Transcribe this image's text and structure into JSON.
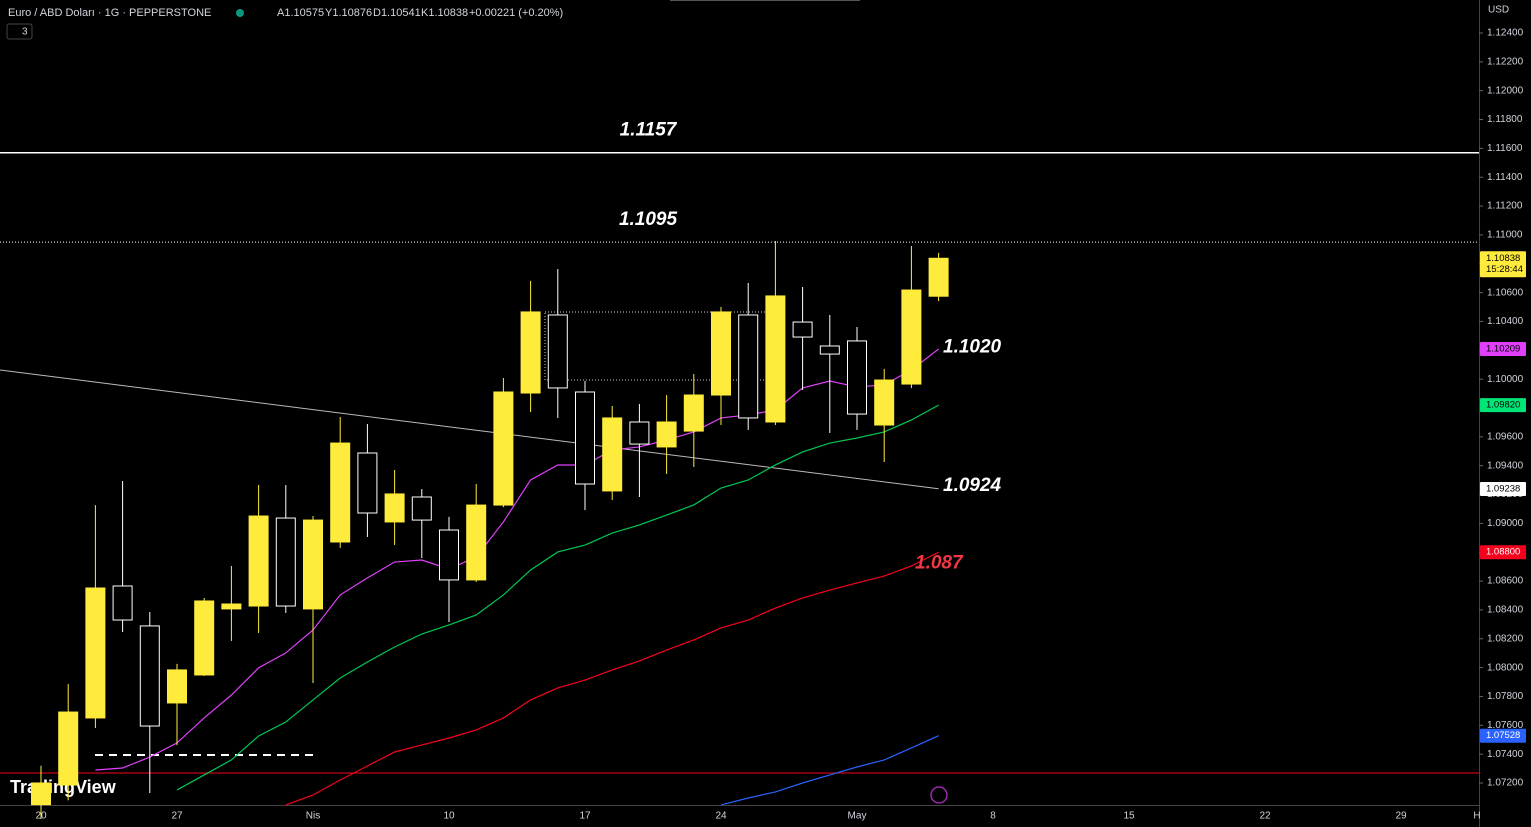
{
  "header": {
    "symbol": "Euro / ABD Doları · 1G · PEPPERSTONE",
    "open": "A1.10575",
    "high": "Y1.10876",
    "low": "D1.10541",
    "close": "K1.10838",
    "change": "+0.00221 (+0.20%)",
    "indicators": "3",
    "currency": "USD",
    "logo": "TradingView"
  },
  "chart_data": {
    "type": "candlestick",
    "up_color": "#ffeb3b",
    "down_color": "#000000",
    "down_border": "#ffffff",
    "grid": false,
    "open": [
      1.0705,
      1.07186,
      1.07651,
      1.08566,
      1.08289,
      1.07755,
      1.07949,
      1.08407,
      1.08427,
      1.09037,
      1.08407,
      1.08871,
      1.09488,
      1.0901,
      1.09183,
      1.08954,
      1.08608,
      1.09127,
      1.09904,
      1.10445,
      1.09911,
      1.09225,
      1.09703,
      1.0953,
      1.0964,
      1.0989,
      1.10445,
      1.09703,
      1.10396,
      1.1023,
      1.10265,
      1.09682,
      1.09966,
      1.10575
    ],
    "high": [
      1.0732,
      1.07886,
      1.09127,
      1.09294,
      1.08386,
      1.08026,
      1.08483,
      1.08705,
      1.09266,
      1.09266,
      1.09051,
      1.09738,
      1.09689,
      1.0937,
      1.09238,
      1.09045,
      1.09273,
      1.10008,
      1.10681,
      1.10764,
      1.09987,
      1.09814,
      1.09828,
      1.0989,
      1.10036,
      1.10501,
      1.10667,
      1.10958,
      1.10639,
      1.10445,
      1.10362,
      1.10071,
      1.10923,
      1.10876
    ],
    "low": [
      1.0695,
      1.0708,
      1.07581,
      1.08247,
      1.07131,
      1.07463,
      1.07942,
      1.08185,
      1.0824,
      1.08379,
      1.07893,
      1.0883,
      1.08906,
      1.0885,
      1.0876,
      1.08316,
      1.08594,
      1.09113,
      1.09772,
      1.09731,
      1.09092,
      1.09162,
      1.09183,
      1.09343,
      1.09391,
      1.09682,
      1.09648,
      1.09682,
      1.09925,
      1.09627,
      1.09648,
      1.09426,
      1.09938,
      1.10541
    ],
    "close": [
      1.072,
      1.07692,
      1.08552,
      1.0833,
      1.07595,
      1.07984,
      1.08462,
      1.08441,
      1.09051,
      1.08427,
      1.09023,
      1.09557,
      1.09072,
      1.09204,
      1.09023,
      1.08608,
      1.09127,
      1.09911,
      1.10466,
      1.09939,
      1.09273,
      1.09731,
      1.0955,
      1.09703,
      1.0989,
      1.10466,
      1.09731,
      1.10577,
      1.10292,
      1.10174,
      1.09758,
      1.09994,
      1.10618,
      1.10838
    ],
    "overlays": [
      {
        "color": "#e040fb",
        "values": [
          null,
          null,
          1.0729,
          1.07304,
          1.0738,
          1.07478,
          1.07651,
          1.0781,
          1.07998,
          1.08102,
          1.08261,
          1.08504,
          1.08622,
          1.08732,
          1.08746,
          1.08684,
          1.08767,
          1.0901,
          1.09301,
          1.09405,
          1.09405,
          1.09509,
          1.0953,
          1.09578,
          1.09634,
          1.09731,
          1.09752,
          1.09786,
          1.09939,
          1.09987,
          1.09946,
          1.0996,
          1.10064,
          1.10209
        ]
      },
      {
        "color": "#00c853",
        "values": [
          null,
          null,
          null,
          null,
          null,
          1.07152,
          1.07256,
          1.0736,
          1.07526,
          1.07623,
          1.07776,
          1.07928,
          1.08039,
          1.08143,
          1.08233,
          1.08296,
          1.08365,
          1.08504,
          1.08677,
          1.08802,
          1.0885,
          1.08933,
          1.08989,
          1.09058,
          1.09128,
          1.09245,
          1.09301,
          1.09405,
          1.09495,
          1.09557,
          1.09592,
          1.09634,
          1.09717,
          1.0982
        ]
      },
      {
        "color": "#f7001d",
        "values": [
          null,
          null,
          null,
          null,
          null,
          null,
          null,
          null,
          null,
          1.07048,
          1.07117,
          1.07221,
          1.07318,
          1.07415,
          1.07464,
          1.07512,
          1.07568,
          1.07651,
          1.07776,
          1.07859,
          1.07914,
          1.07984,
          1.08046,
          1.08122,
          1.08192,
          1.08275,
          1.0833,
          1.08413,
          1.08483,
          1.08538,
          1.08587,
          1.08635,
          1.08705,
          1.088
        ]
      },
      {
        "color": "#2962ff",
        "values": [
          null,
          null,
          null,
          null,
          null,
          null,
          null,
          null,
          null,
          null,
          null,
          null,
          null,
          null,
          null,
          null,
          null,
          null,
          null,
          null,
          null,
          null,
          null,
          null,
          null,
          1.07048,
          1.07096,
          1.07138,
          1.072,
          1.07256,
          1.07311,
          1.0736,
          1.07443,
          1.07528
        ]
      }
    ],
    "ylim": [
      1.0709,
      1.1263
    ],
    "yticks": [
      {
        "value": 1.124,
        "label": "1.12400"
      },
      {
        "value": 1.122,
        "label": "1.12200"
      },
      {
        "value": 1.12,
        "label": "1.12000"
      },
      {
        "value": 1.118,
        "label": "1.11800"
      },
      {
        "value": 1.116,
        "label": "1.11600"
      },
      {
        "value": 1.114,
        "label": "1.11400"
      },
      {
        "value": 1.112,
        "label": "1.11200"
      },
      {
        "value": 1.11,
        "label": "1.11000"
      },
      {
        "value": 1.108,
        "label": "1.10800"
      },
      {
        "value": 1.106,
        "label": "1.10600"
      },
      {
        "value": 1.104,
        "label": "1.10400"
      },
      {
        "value": 1.102,
        "label": "1.10200"
      },
      {
        "value": 1.1,
        "label": "1.10000"
      },
      {
        "value": 1.098,
        "label": "1.09800"
      },
      {
        "value": 1.096,
        "label": "1.09600"
      },
      {
        "value": 1.094,
        "label": "1.09400"
      },
      {
        "value": 1.092,
        "label": "1.09200"
      },
      {
        "value": 1.09,
        "label": "1.09000"
      },
      {
        "value": 1.088,
        "label": "1.08800"
      },
      {
        "value": 1.086,
        "label": "1.08600"
      },
      {
        "value": 1.084,
        "label": "1.08400"
      },
      {
        "value": 1.082,
        "label": "1.08200"
      },
      {
        "value": 1.08,
        "label": "1.08000"
      },
      {
        "value": 1.078,
        "label": "1.07800"
      },
      {
        "value": 1.076,
        "label": "1.07600"
      },
      {
        "value": 1.074,
        "label": "1.07400"
      },
      {
        "value": 1.072,
        "label": "1.07200"
      }
    ],
    "xtick_labels": [
      "20",
      "27",
      "Nis",
      "10",
      "17",
      "24",
      "May",
      "8",
      "15",
      "22",
      "29",
      "H"
    ],
    "levels": [
      {
        "value": 1.1157,
        "label": "1.1157",
        "style": "solid"
      },
      {
        "value": 1.1095,
        "label": "1.1095",
        "style": "dotted"
      }
    ],
    "annotations": [
      {
        "value": 1.102,
        "label": "1.1020",
        "color": "#ffffff"
      },
      {
        "value": 1.0924,
        "label": "1.0924",
        "color": "#ffffff"
      },
      {
        "value": 1.087,
        "label": "1.087",
        "color": "#f23645"
      }
    ],
    "price_tags": [
      {
        "value": 1.10838,
        "label": "1.10838",
        "color": "#ffeb3b",
        "countdown": "15:28:44"
      },
      {
        "value": 1.10209,
        "label": "1.10209",
        "color": "#e040fb"
      },
      {
        "value": 1.0982,
        "label": "1.09820",
        "color": "#00e676"
      },
      {
        "value": 1.09238,
        "label": "1.09238",
        "color": "#ffffff"
      },
      {
        "value": 1.088,
        "label": "1.08800",
        "color": "#f7001d"
      },
      {
        "value": 1.07528,
        "label": "1.07528",
        "color": "#2962ff"
      }
    ]
  }
}
